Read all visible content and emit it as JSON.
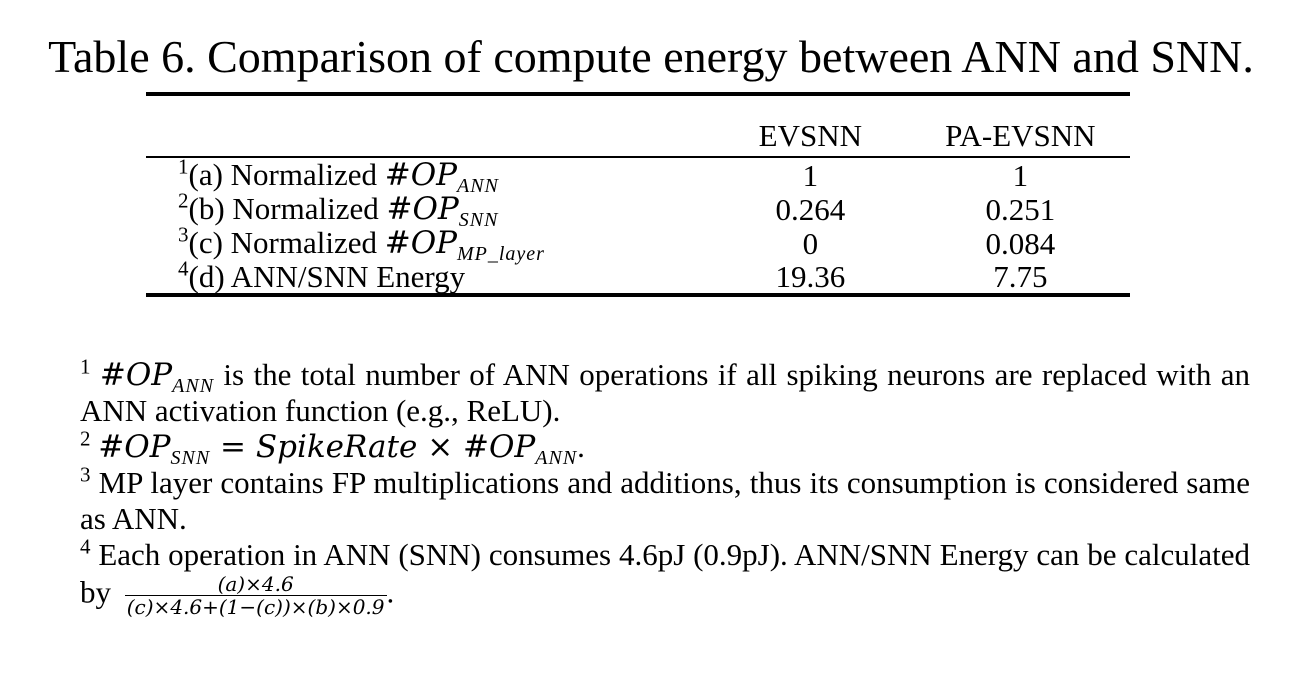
{
  "caption": "Table 6. Comparison of compute energy between ANN and SNN.",
  "table": {
    "columns": [
      "",
      "EVSNN",
      "PA-EVSNN"
    ],
    "rows": [
      {
        "sup": "1",
        "label_text": "(a) Normalized ",
        "math": "#OP",
        "sub": "ANN",
        "evsnn": "1",
        "pa_evsnn": "1"
      },
      {
        "sup": "2",
        "label_text": "(b) Normalized ",
        "math": "#OP",
        "sub": "SNN",
        "evsnn": "0.264",
        "pa_evsnn": "0.251"
      },
      {
        "sup": "3",
        "label_text": "(c) Normalized ",
        "math": "#OP",
        "sub": "MP_layer",
        "evsnn": "0",
        "pa_evsnn": "0.084"
      },
      {
        "sup": "4",
        "label_text": "(d) ANN/SNN Energy",
        "math": "",
        "sub": "",
        "evsnn": "19.36",
        "pa_evsnn": "7.75"
      }
    ]
  },
  "footnotes": {
    "n1_sup": "1",
    "n1_math": "#OP",
    "n1_sub": "ANN",
    "n1_text": " is the total number of ANN operations if all spiking neurons are replaced with an ANN activation function (e.g., ReLU).",
    "n2_sup": "2",
    "n2_math_a": "#OP",
    "n2_sub_a": "SNN",
    "n2_math_b": " = SpikeRate × #OP",
    "n2_sub_b": "ANN",
    "n2_end": ".",
    "n3_sup": "3",
    "n3_text": " MP layer contains FP multiplications and additions, thus its consumption is considered same as ANN.",
    "n4_sup": "4",
    "n4_text": " Each operation in ANN (SNN) consumes 4.6pJ (0.9pJ). ANN/SNN Energy can be calculated by ",
    "n4_frac_num": "(a)×4.6",
    "n4_frac_den": "(c)×4.6+(1−(c))×(b)×0.9",
    "n4_end": "."
  }
}
